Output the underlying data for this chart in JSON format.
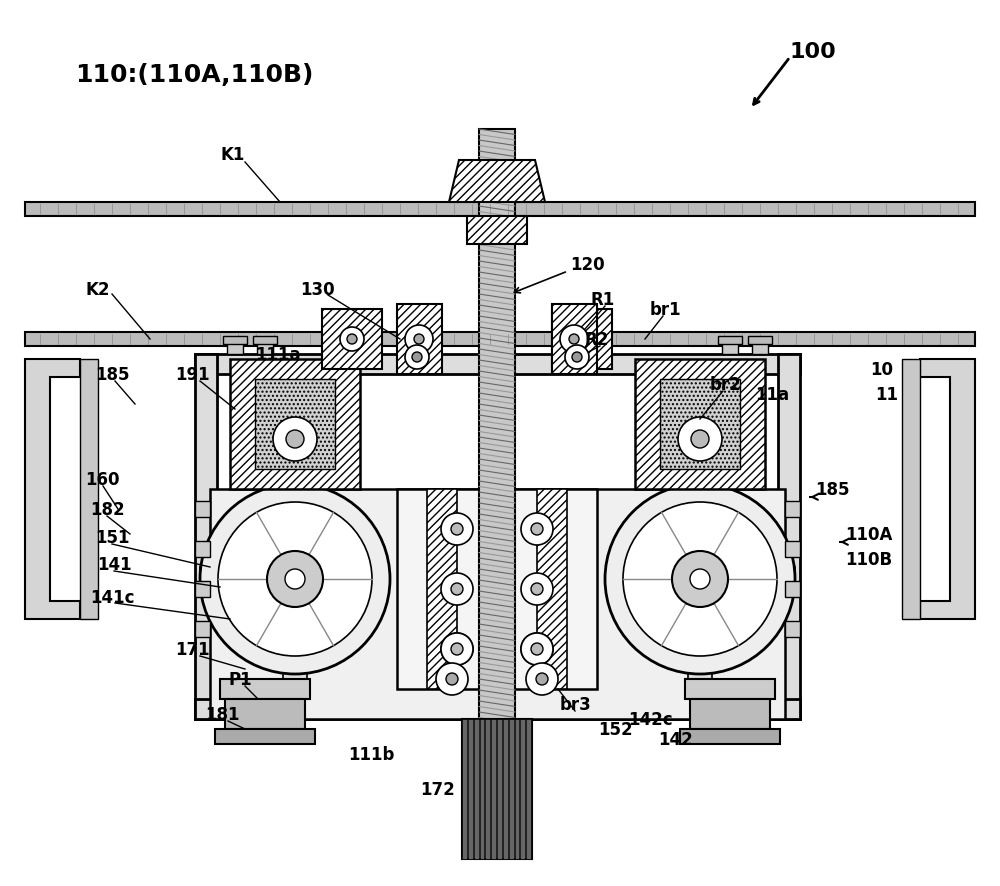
{
  "background_color": "#ffffff",
  "labels": {
    "main_ref": "100",
    "label1": "110:(110A,110B)",
    "K1": "K1",
    "K2": "K2",
    "L120": "120",
    "L130": "130",
    "LR1": "R1",
    "LR2": "R2",
    "Lbr1": "br1",
    "Lbr2": "br2",
    "Lbr3": "br3",
    "L111a": "111a",
    "L111b": "111b",
    "L160": "160",
    "L182": "182",
    "L151": "151",
    "L141": "141",
    "L141c": "141c",
    "L171": "171",
    "LP1": "P1",
    "L181": "181",
    "L185a": "185",
    "L185b": "185",
    "L191": "191",
    "L110A": "110A",
    "L110B": "110B",
    "L152": "152",
    "L142": "142",
    "L142c": "142c",
    "L172": "172",
    "L10": "10",
    "L11": "11",
    "L11a": "11a"
  }
}
